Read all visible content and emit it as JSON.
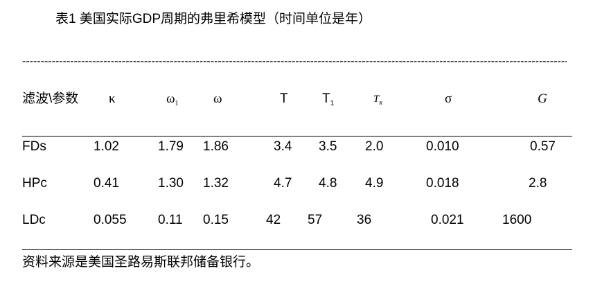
{
  "title": "表1 美国实际GDP周期的弗里希模型（时间单位是年）",
  "separator": "------------------------------------------------------------------------------------------------------------------------------------------------------------",
  "table": {
    "header": [
      "滤波\\参数",
      "κ",
      {
        "text": "ω",
        "sub": "1"
      },
      "ω",
      "T",
      {
        "text": "T",
        "sub": "1"
      },
      {
        "text": "T",
        "sub": "κ"
      },
      "σ",
      "G"
    ],
    "rows": [
      [
        "FDs",
        "1.02",
        "1.79",
        "1.86",
        "3.4",
        "3.5",
        "2.0",
        "0.010",
        "0.57"
      ],
      [
        "HPc",
        "0.41",
        "1.30",
        "1.32",
        "4.7",
        "4.8",
        "4.9",
        "0.018",
        "2.8"
      ],
      [
        "LDc",
        "0.055",
        "0.11",
        "0.15",
        "42",
        "57",
        "36",
        "0.021",
        "1600"
      ]
    ]
  },
  "source": "资料来源是美国圣路易斯联邦储备银行。"
}
